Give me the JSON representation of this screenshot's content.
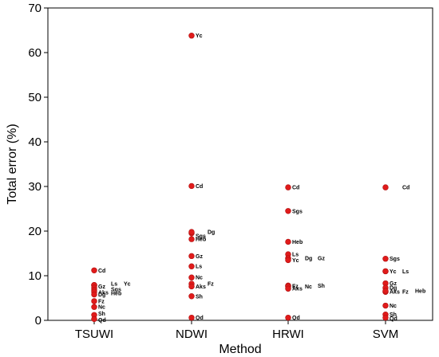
{
  "chart_data": {
    "type": "scatter",
    "xlabel": "Method",
    "ylabel": "Total error (%)",
    "categories": [
      "TSUWI",
      "NDWI",
      "HRWI",
      "SVM"
    ],
    "ylim": [
      0,
      70
    ],
    "yticks": [
      0,
      10,
      20,
      30,
      40,
      50,
      60,
      70
    ],
    "grid": false,
    "marker_color": "#e01b1b",
    "points": [
      {
        "method": "TSUWI",
        "label": "Cd",
        "value": 11.2
      },
      {
        "method": "TSUWI",
        "label": "Gz",
        "value": 7.8
      },
      {
        "method": "TSUWI",
        "label": "Ls",
        "value": 7.9
      },
      {
        "method": "TSUWI",
        "label": "Yc",
        "value": 7.9
      },
      {
        "method": "TSUWI",
        "label": "Sgs",
        "value": 7.3
      },
      {
        "method": "TSUWI",
        "label": "Aks",
        "value": 6.8
      },
      {
        "method": "TSUWI",
        "label": "Heb",
        "value": 6.4
      },
      {
        "method": "TSUWI",
        "label": "Dg",
        "value": 5.8
      },
      {
        "method": "TSUWI",
        "label": "Fz",
        "value": 4.3
      },
      {
        "method": "TSUWI",
        "label": "Nc",
        "value": 3.0
      },
      {
        "method": "TSUWI",
        "label": "Sh",
        "value": 1.2
      },
      {
        "method": "TSUWI",
        "label": "Qd",
        "value": 0.3
      },
      {
        "method": "NDWI",
        "label": "Yc",
        "value": 63.8
      },
      {
        "method": "NDWI",
        "label": "Cd",
        "value": 30.1
      },
      {
        "method": "NDWI",
        "label": "Sgs",
        "value": 19.5
      },
      {
        "method": "NDWI",
        "label": "Dg",
        "value": 19.8
      },
      {
        "method": "NDWI",
        "label": "Heb",
        "value": 18.2
      },
      {
        "method": "NDWI",
        "label": "Gz",
        "value": 14.4
      },
      {
        "method": "NDWI",
        "label": "Ls",
        "value": 12.1
      },
      {
        "method": "NDWI",
        "label": "Nc",
        "value": 9.6
      },
      {
        "method": "NDWI",
        "label": "Fz",
        "value": 8.2
      },
      {
        "method": "NDWI",
        "label": "Aks",
        "value": 7.6
      },
      {
        "method": "NDWI",
        "label": "Sh",
        "value": 5.4
      },
      {
        "method": "NDWI",
        "label": "Qd",
        "value": 0.6
      },
      {
        "method": "HRWI",
        "label": "Cd",
        "value": 29.8
      },
      {
        "method": "HRWI",
        "label": "Sgs",
        "value": 24.5
      },
      {
        "method": "HRWI",
        "label": "Heb",
        "value": 17.6
      },
      {
        "method": "HRWI",
        "label": "Ls",
        "value": 14.8
      },
      {
        "method": "HRWI",
        "label": "Dg",
        "value": 13.9
      },
      {
        "method": "HRWI",
        "label": "Gz",
        "value": 13.9
      },
      {
        "method": "HRWI",
        "label": "Yc",
        "value": 13.5
      },
      {
        "method": "HRWI",
        "label": "Fz",
        "value": 7.7
      },
      {
        "method": "HRWI",
        "label": "Sh",
        "value": 7.8
      },
      {
        "method": "HRWI",
        "label": "Nc",
        "value": 7.6
      },
      {
        "method": "HRWI",
        "label": "Aks",
        "value": 7.1
      },
      {
        "method": "HRWI",
        "label": "Qd",
        "value": 0.6
      },
      {
        "method": "SVM",
        "label": "Cd",
        "value": 29.8
      },
      {
        "method": "SVM",
        "label": "Sgs",
        "value": 13.8
      },
      {
        "method": "SVM",
        "label": "Yc",
        "value": 11.0
      },
      {
        "method": "SVM",
        "label": "Ls",
        "value": 11.0
      },
      {
        "method": "SVM",
        "label": "Gz",
        "value": 8.3
      },
      {
        "method": "SVM",
        "label": "Dg",
        "value": 7.3
      },
      {
        "method": "SVM",
        "label": "Aks",
        "value": 6.4
      },
      {
        "method": "SVM",
        "label": "Fz",
        "value": 6.4
      },
      {
        "method": "SVM",
        "label": "Heb",
        "value": 6.6
      },
      {
        "method": "SVM",
        "label": "Nc",
        "value": 3.3
      },
      {
        "method": "SVM",
        "label": "Sh",
        "value": 1.3
      },
      {
        "method": "SVM",
        "label": "Qd",
        "value": 0.6
      }
    ]
  }
}
